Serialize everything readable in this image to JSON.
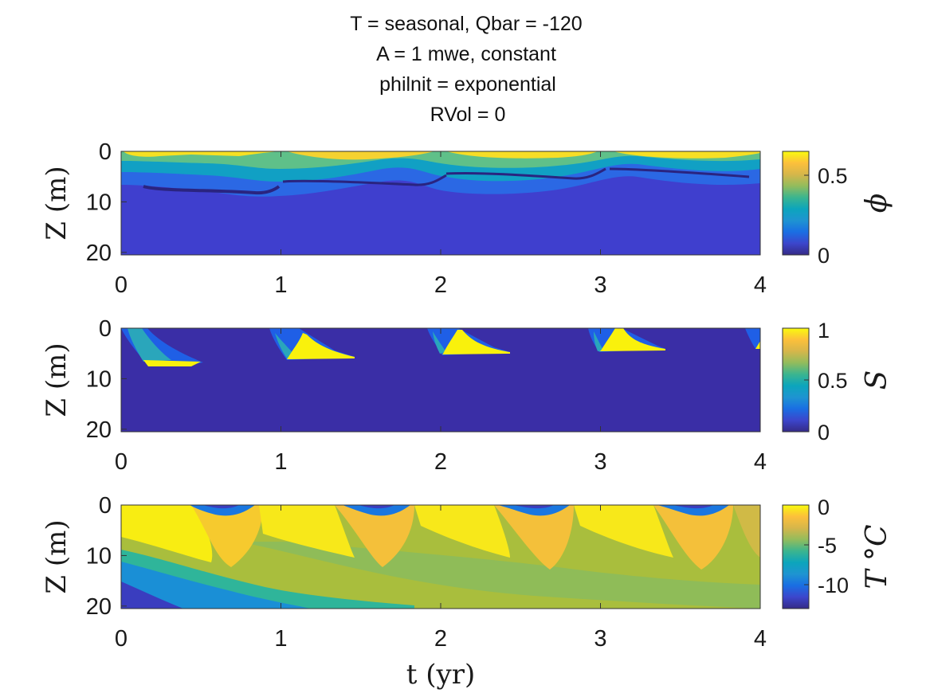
{
  "title_lines": [
    "T = seasonal, Qbar = -120",
    "A = 1 mwe, constant",
    "philnit = exponential",
    "RVol = 0"
  ],
  "colors": {
    "parula": [
      "#352a87",
      "#3c46cc",
      "#1a6ee3",
      "#1e94d1",
      "#0ca5bc",
      "#3bb58f",
      "#93bc5c",
      "#d6b64a",
      "#fcc03b",
      "#f9fb0e"
    ]
  },
  "chart_data": [
    {
      "type": "heatmap",
      "name_panel": "phi",
      "xlabel": "",
      "ylabel": "Z (m)",
      "x_ticks": [
        "0",
        "1",
        "2",
        "3",
        "4"
      ],
      "y_ticks": [
        "0",
        "10",
        "20"
      ],
      "xlim": [
        0,
        4
      ],
      "ylim": [
        0,
        20.5
      ],
      "colorbar": {
        "label": "ϕ",
        "ticks": [
          "0.5",
          "0"
        ],
        "tick_values": [
          0.5,
          0
        ],
        "clim": [
          0,
          0.65
        ]
      }
    },
    {
      "type": "heatmap",
      "name_panel": "S",
      "xlabel": "",
      "ylabel": "Z (m)",
      "x_ticks": [
        "0",
        "1",
        "2",
        "3",
        "4"
      ],
      "y_ticks": [
        "0",
        "10",
        "20"
      ],
      "xlim": [
        0,
        4
      ],
      "ylim": [
        0,
        20.5
      ],
      "colorbar": {
        "label": "S",
        "ticks": [
          "1",
          "0.5",
          "0"
        ],
        "tick_values": [
          1,
          0.5,
          0
        ],
        "clim": [
          0,
          1
        ]
      }
    },
    {
      "type": "heatmap",
      "name_panel": "T",
      "xlabel": "t (yr)",
      "ylabel": "Z (m)",
      "x_ticks": [
        "0",
        "1",
        "2",
        "3",
        "4"
      ],
      "y_ticks": [
        "0",
        "10",
        "20"
      ],
      "xlim": [
        0,
        4
      ],
      "ylim": [
        0,
        20.5
      ],
      "colorbar": {
        "label": "T °C",
        "ticks": [
          "0",
          "-5",
          "-10"
        ],
        "tick_values": [
          0,
          -5,
          -10
        ],
        "clim": [
          -13,
          0
        ]
      }
    }
  ]
}
